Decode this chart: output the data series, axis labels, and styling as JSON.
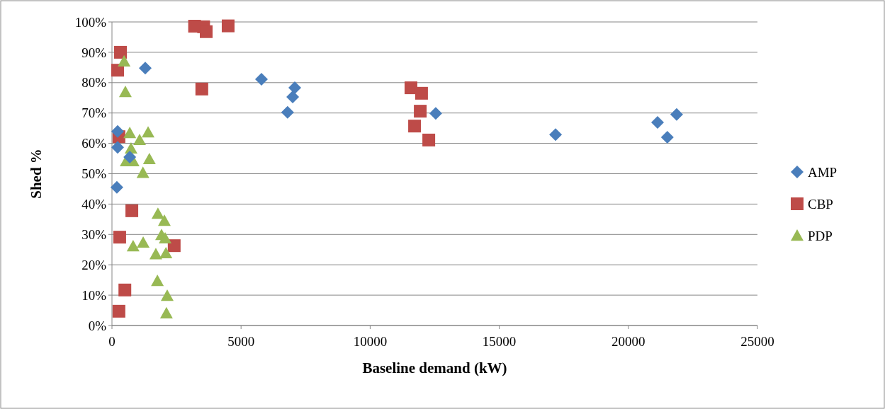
{
  "chart_data": {
    "type": "scatter",
    "xlabel": "Baseline demand (kW)",
    "ylabel": "Shed %",
    "xlim": [
      0,
      25000
    ],
    "xticks": [
      0,
      5000,
      10000,
      15000,
      20000,
      25000
    ],
    "ylim": [
      0,
      1
    ],
    "yticks": [
      {
        "value": 0,
        "label": "0%"
      },
      {
        "value": 0.1,
        "label": "10%"
      },
      {
        "value": 0.2,
        "label": "20%"
      },
      {
        "value": 0.3,
        "label": "30%"
      },
      {
        "value": 0.4,
        "label": "40%"
      },
      {
        "value": 0.5,
        "label": "50%"
      },
      {
        "value": 0.6,
        "label": "60%"
      },
      {
        "value": 0.7,
        "label": "70%"
      },
      {
        "value": 0.8,
        "label": "80%"
      },
      {
        "value": 0.9,
        "label": "90%"
      },
      {
        "value": 1,
        "label": "100%"
      }
    ],
    "grid": "y",
    "legend": "right",
    "series": [
      {
        "name": "AMP",
        "color": "#4a7ebb",
        "marker": "diamond",
        "x": [
          1290,
          5790,
          7080,
          7000,
          6800,
          12540,
          17180,
          21130,
          21510,
          21870,
          220,
          220,
          690,
          190
        ],
        "values": [
          0.848,
          0.811,
          0.783,
          0.753,
          0.702,
          0.699,
          0.629,
          0.669,
          0.62,
          0.695,
          0.639,
          0.587,
          0.555,
          0.455
        ]
      },
      {
        "name": "CBP",
        "color": "#be4b48",
        "marker": "square",
        "x": [
          330,
          220,
          3200,
          3550,
          3650,
          4500,
          3480,
          11580,
          11990,
          11940,
          11720,
          12270,
          270,
          770,
          300,
          2410,
          500,
          270
        ],
        "values": [
          0.9,
          0.841,
          0.986,
          0.984,
          0.968,
          0.987,
          0.779,
          0.783,
          0.765,
          0.706,
          0.657,
          0.611,
          0.622,
          0.378,
          0.291,
          0.263,
          0.117,
          0.047
        ]
      },
      {
        "name": "PDP",
        "color": "#98b954",
        "marker": "triangle",
        "x": [
          470,
          520,
          690,
          1400,
          1070,
          740,
          550,
          820,
          1450,
          1200,
          1780,
          2030,
          1920,
          2060,
          820,
          1210,
          1700,
          2090,
          1760,
          2140,
          2110
        ],
        "values": [
          0.87,
          0.769,
          0.634,
          0.636,
          0.611,
          0.583,
          0.541,
          0.541,
          0.548,
          0.503,
          0.368,
          0.345,
          0.298,
          0.287,
          0.261,
          0.273,
          0.235,
          0.238,
          0.147,
          0.098,
          0.04
        ]
      }
    ]
  }
}
